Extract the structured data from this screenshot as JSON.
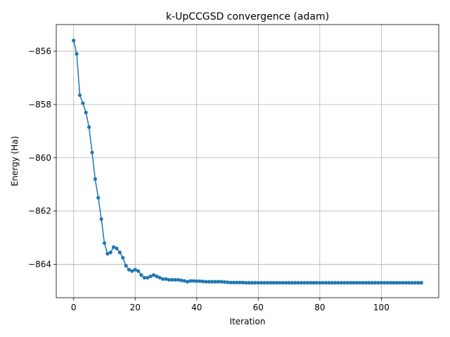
{
  "chart_data": {
    "type": "line",
    "title": "k-UpCCGSD convergence (adam)",
    "xlabel": "Iteration",
    "ylabel": "Energy (Ha)",
    "xlim": [
      -5.65,
      118.65
    ],
    "ylim": [
      -865.25,
      -855.0
    ],
    "xticks": [
      0,
      20,
      40,
      60,
      80,
      100
    ],
    "xtick_labels": [
      "0",
      "20",
      "40",
      "60",
      "80",
      "100"
    ],
    "yticks": [
      -856,
      -858,
      -860,
      -862,
      -864
    ],
    "ytick_labels": [
      "−856",
      "−858",
      "−860",
      "−862",
      "−864"
    ],
    "grid": true,
    "legend": "none",
    "series": [
      {
        "color": "#1f77b4",
        "marker": "circle",
        "x": [
          0,
          1,
          2,
          3,
          4,
          5,
          6,
          7,
          8,
          9,
          10,
          11,
          12,
          13,
          14,
          15,
          16,
          17,
          18,
          19,
          20,
          21,
          22,
          23,
          24,
          25,
          26,
          27,
          28,
          29,
          30,
          31,
          32,
          33,
          34,
          35,
          36,
          37,
          38,
          39,
          40,
          41,
          42,
          43,
          44,
          45,
          46,
          47,
          48,
          49,
          50,
          51,
          52,
          53,
          54,
          55,
          56,
          57,
          58,
          59,
          60,
          61,
          62,
          63,
          64,
          65,
          66,
          67,
          68,
          69,
          70,
          71,
          72,
          73,
          74,
          75,
          76,
          77,
          78,
          79,
          80,
          81,
          82,
          83,
          84,
          85,
          86,
          87,
          88,
          89,
          90,
          91,
          92,
          93,
          94,
          95,
          96,
          97,
          98,
          99,
          100,
          101,
          102,
          103,
          104,
          105,
          106,
          107,
          108,
          109,
          110,
          111,
          112,
          113
        ],
        "values": [
          -855.6,
          -856.1,
          -857.65,
          -857.95,
          -858.3,
          -858.85,
          -859.8,
          -860.8,
          -861.5,
          -862.3,
          -863.2,
          -863.6,
          -863.55,
          -863.35,
          -863.4,
          -863.55,
          -863.75,
          -864.05,
          -864.2,
          -864.25,
          -864.2,
          -864.25,
          -864.4,
          -864.5,
          -864.5,
          -864.45,
          -864.4,
          -864.45,
          -864.5,
          -864.55,
          -864.55,
          -864.58,
          -864.58,
          -864.58,
          -864.58,
          -864.6,
          -864.62,
          -864.65,
          -864.62,
          -864.62,
          -864.63,
          -864.63,
          -864.64,
          -864.65,
          -864.65,
          -864.65,
          -864.65,
          -864.65,
          -864.65,
          -864.66,
          -864.67,
          -864.68,
          -864.68,
          -864.68,
          -864.68,
          -864.68,
          -864.69,
          -864.69,
          -864.69,
          -864.69,
          -864.69,
          -864.69,
          -864.69,
          -864.69,
          -864.69,
          -864.69,
          -864.69,
          -864.69,
          -864.69,
          -864.69,
          -864.69,
          -864.69,
          -864.69,
          -864.69,
          -864.69,
          -864.69,
          -864.69,
          -864.69,
          -864.69,
          -864.69,
          -864.69,
          -864.69,
          -864.69,
          -864.69,
          -864.69,
          -864.69,
          -864.69,
          -864.69,
          -864.69,
          -864.69,
          -864.69,
          -864.69,
          -864.69,
          -864.69,
          -864.69,
          -864.69,
          -864.69,
          -864.69,
          -864.69,
          -864.69,
          -864.69,
          -864.69,
          -864.69,
          -864.69,
          -864.69,
          -864.69,
          -864.69,
          -864.69,
          -864.69,
          -864.69,
          -864.69,
          -864.69,
          -864.69,
          -864.69
        ]
      }
    ]
  }
}
